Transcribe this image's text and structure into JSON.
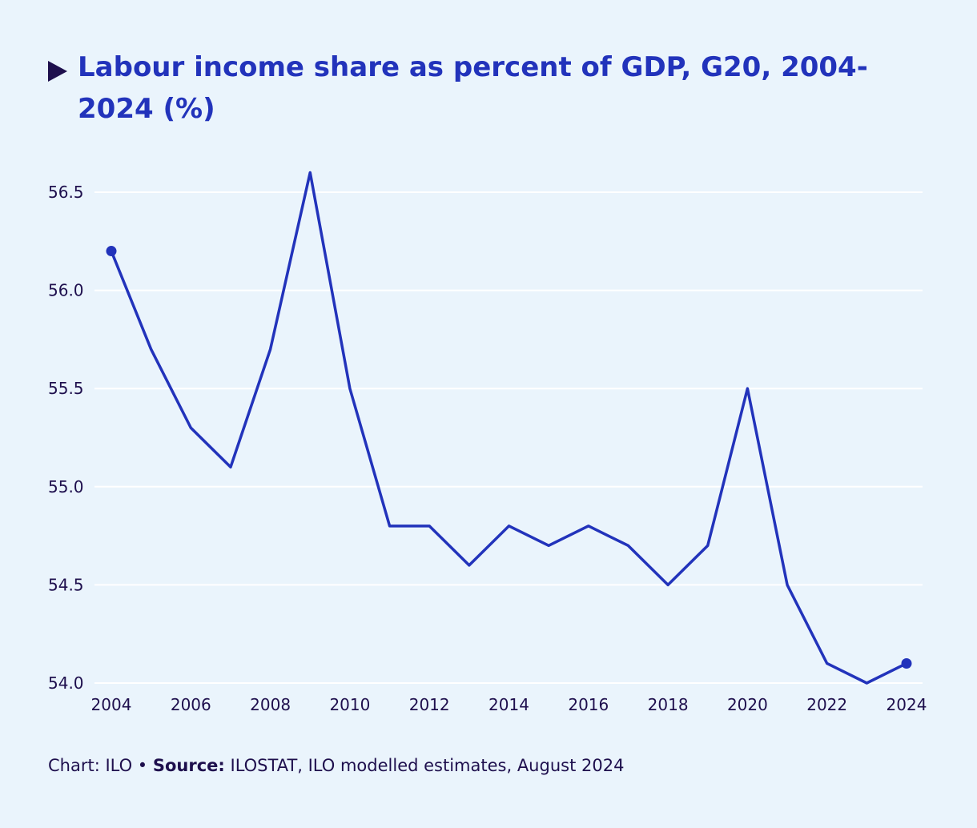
{
  "chart_data": {
    "type": "line",
    "title": "Labour income share as percent of GDP, G20, 2004-2024 (%)",
    "xlabel": "",
    "ylabel": "",
    "x": [
      2004,
      2005,
      2006,
      2007,
      2008,
      2009,
      2010,
      2011,
      2012,
      2013,
      2014,
      2015,
      2016,
      2017,
      2018,
      2019,
      2020,
      2021,
      2022,
      2023,
      2024
    ],
    "series": [
      {
        "name": "Labour income share (% of GDP)",
        "values": [
          56.2,
          55.7,
          55.3,
          55.1,
          55.7,
          56.6,
          55.5,
          54.8,
          54.8,
          54.6,
          54.8,
          54.7,
          54.8,
          54.7,
          54.5,
          54.7,
          55.5,
          54.5,
          54.1,
          54.0,
          54.1
        ]
      }
    ],
    "xticks": [
      "2004",
      "2006",
      "2008",
      "2010",
      "2012",
      "2014",
      "2016",
      "2018",
      "2020",
      "2022",
      "2024"
    ],
    "yticks": [
      "54.0",
      "54.5",
      "55.0",
      "55.5",
      "56.0",
      "56.5"
    ],
    "ylim": [
      54.0,
      56.5
    ],
    "xlim": [
      2004,
      2024
    ],
    "grid": true,
    "endpoint_markers": true,
    "line_color": "#2233bb",
    "grid_color": "#ffffff"
  },
  "footer": {
    "prefix": "Chart: ILO • ",
    "source_label": "Source:",
    "source_text": " ILOSTAT, ILO modelled estimates, August 2024"
  }
}
